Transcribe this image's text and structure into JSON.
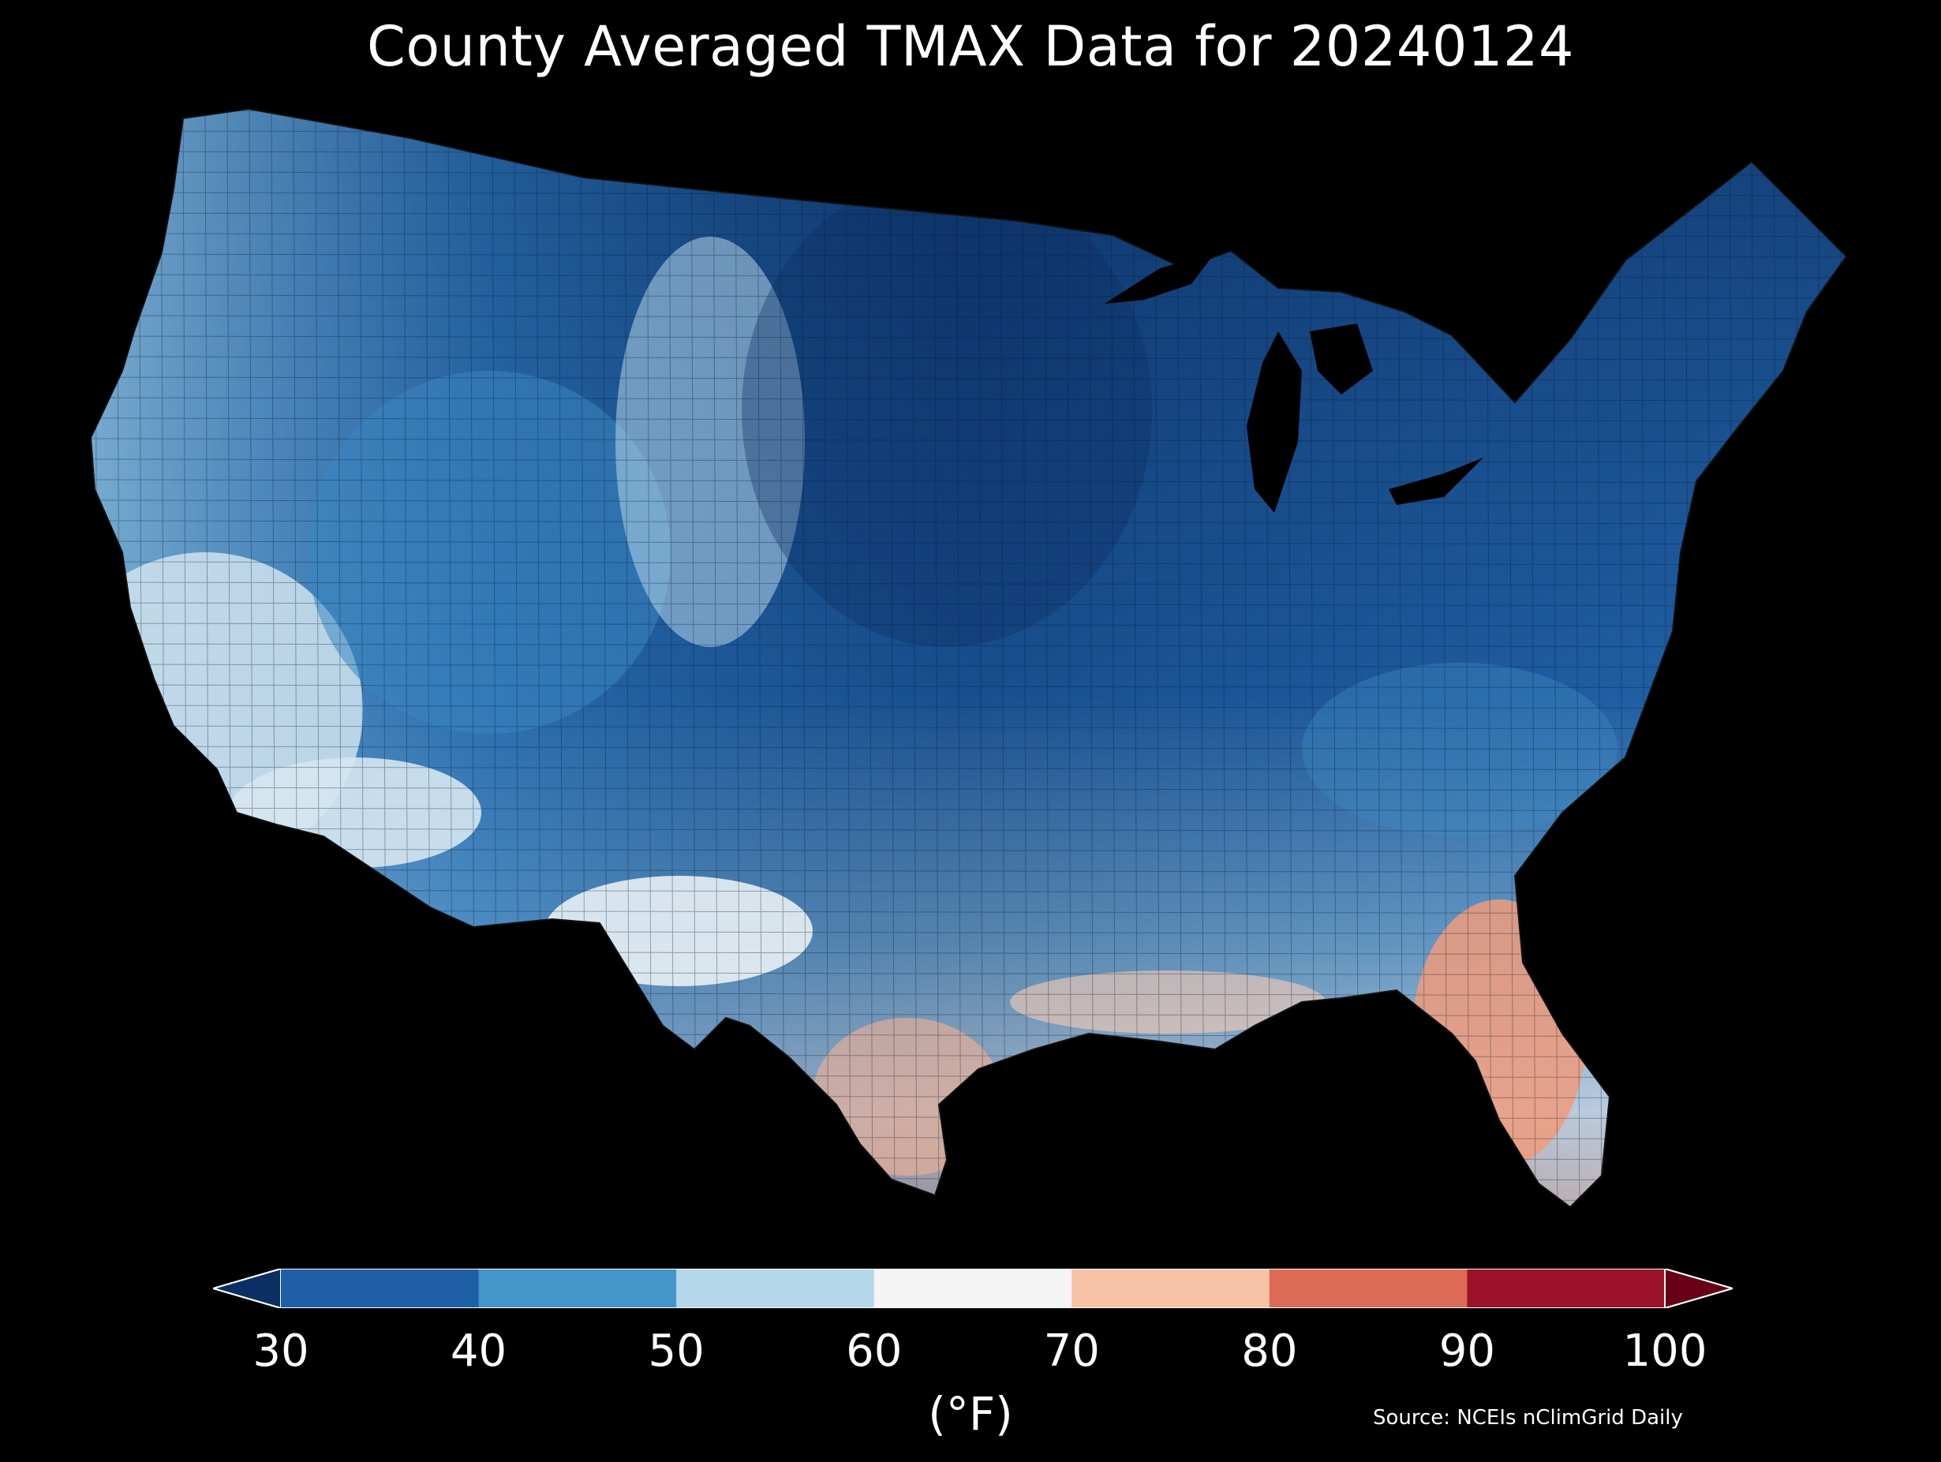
{
  "title": "County Averaged TMAX Data for 20240124",
  "colorbar": {
    "unit": "(°F)",
    "ticks": [
      "30",
      "40",
      "50",
      "60",
      "70",
      "80",
      "90",
      "100"
    ],
    "bins": [
      {
        "range": "<30",
        "color": "#0b2f62"
      },
      {
        "range": "30-40",
        "color": "#1f5fa6"
      },
      {
        "range": "40-50",
        "color": "#4496c8"
      },
      {
        "range": "50-60",
        "color": "#b4d6e9"
      },
      {
        "range": "60-70",
        "color": "#f4f4f4"
      },
      {
        "range": "70-80",
        "color": "#f8c2a6"
      },
      {
        "range": "80-90",
        "color": "#dc6a55"
      },
      {
        "range": "90-100",
        "color": "#9c1229"
      },
      {
        "range": ">100",
        "color": "#670016"
      }
    ]
  },
  "map": {
    "region": "Contiguous United States",
    "variable": "TMAX",
    "units": "°F",
    "background": "#000000"
  },
  "source": "Source: NCEIs nClimGrid Daily"
}
